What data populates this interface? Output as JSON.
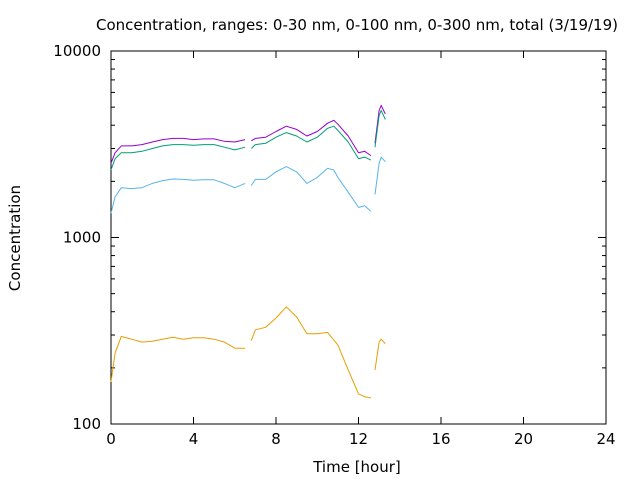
{
  "chart_data": {
    "type": "line",
    "title": "Concentration, ranges: 0-30 nm, 0-100 nm, 0-300 nm, total (3/19/19)",
    "xlabel": "Time [hour]",
    "ylabel": "Concentration",
    "xlim": [
      0,
      24
    ],
    "ylim": [
      100,
      10000
    ],
    "yscale": "log",
    "grid": false,
    "legend": "none",
    "x_ticks": [
      "0",
      "4",
      "8",
      "12",
      "16",
      "20",
      "24"
    ],
    "y_ticks": [
      "100",
      "1000",
      "10000"
    ],
    "series": [
      {
        "color": "#9400d3",
        "segments": [
          [
            [
              0.0,
              2500
            ],
            [
              0.2,
              2850
            ],
            [
              0.5,
              3100
            ],
            [
              1.0,
              3100
            ],
            [
              1.5,
              3150
            ],
            [
              2.0,
              3250
            ],
            [
              2.5,
              3350
            ],
            [
              3.0,
              3400
            ],
            [
              3.5,
              3400
            ],
            [
              4.0,
              3350
            ],
            [
              4.5,
              3380
            ],
            [
              5.0,
              3380
            ],
            [
              5.5,
              3280
            ],
            [
              6.0,
              3250
            ],
            [
              6.5,
              3350
            ]
          ],
          [
            [
              6.8,
              3300
            ],
            [
              7.0,
              3400
            ],
            [
              7.5,
              3450
            ],
            [
              8.0,
              3700
            ],
            [
              8.5,
              3950
            ],
            [
              9.0,
              3800
            ],
            [
              9.5,
              3500
            ],
            [
              10.0,
              3700
            ],
            [
              10.5,
              4100
            ],
            [
              10.8,
              4250
            ],
            [
              11.0,
              4050
            ],
            [
              11.5,
              3500
            ],
            [
              12.0,
              2850
            ],
            [
              12.3,
              2900
            ],
            [
              12.6,
              2750
            ]
          ],
          [
            [
              12.8,
              3200
            ],
            [
              13.0,
              4800
            ],
            [
              13.1,
              5100
            ],
            [
              13.3,
              4600
            ]
          ]
        ]
      },
      {
        "color": "#009e73",
        "segments": [
          [
            [
              0.0,
              2300
            ],
            [
              0.2,
              2650
            ],
            [
              0.5,
              2850
            ],
            [
              1.0,
              2850
            ],
            [
              1.5,
              2900
            ],
            [
              2.0,
              3000
            ],
            [
              2.5,
              3100
            ],
            [
              3.0,
              3150
            ],
            [
              3.5,
              3150
            ],
            [
              4.0,
              3120
            ],
            [
              4.5,
              3150
            ],
            [
              5.0,
              3150
            ],
            [
              5.5,
              3050
            ],
            [
              6.0,
              2950
            ],
            [
              6.5,
              3050
            ]
          ],
          [
            [
              6.8,
              3000
            ],
            [
              7.0,
              3150
            ],
            [
              7.5,
              3200
            ],
            [
              8.0,
              3450
            ],
            [
              8.5,
              3650
            ],
            [
              9.0,
              3500
            ],
            [
              9.5,
              3250
            ],
            [
              10.0,
              3450
            ],
            [
              10.5,
              3850
            ],
            [
              10.8,
              3950
            ],
            [
              11.0,
              3750
            ],
            [
              11.5,
              3250
            ],
            [
              12.0,
              2650
            ],
            [
              12.3,
              2700
            ],
            [
              12.6,
              2600
            ]
          ],
          [
            [
              12.8,
              3050
            ],
            [
              13.0,
              4500
            ],
            [
              13.1,
              4800
            ],
            [
              13.3,
              4300
            ]
          ]
        ]
      },
      {
        "color": "#56b4e9",
        "segments": [
          [
            [
              0.0,
              1350
            ],
            [
              0.2,
              1650
            ],
            [
              0.5,
              1850
            ],
            [
              1.0,
              1830
            ],
            [
              1.5,
              1850
            ],
            [
              2.0,
              1950
            ],
            [
              2.5,
              2020
            ],
            [
              3.0,
              2060
            ],
            [
              3.5,
              2050
            ],
            [
              4.0,
              2030
            ],
            [
              4.5,
              2040
            ],
            [
              5.0,
              2040
            ],
            [
              5.5,
              1950
            ],
            [
              6.0,
              1850
            ],
            [
              6.5,
              1950
            ]
          ],
          [
            [
              6.8,
              1900
            ],
            [
              7.0,
              2050
            ],
            [
              7.5,
              2050
            ],
            [
              8.0,
              2250
            ],
            [
              8.5,
              2400
            ],
            [
              9.0,
              2250
            ],
            [
              9.5,
              1950
            ],
            [
              10.0,
              2100
            ],
            [
              10.5,
              2350
            ],
            [
              10.8,
              2300
            ],
            [
              11.0,
              2100
            ],
            [
              11.5,
              1750
            ],
            [
              12.0,
              1450
            ],
            [
              12.3,
              1480
            ],
            [
              12.6,
              1380
            ]
          ],
          [
            [
              12.8,
              1700
            ],
            [
              13.0,
              2500
            ],
            [
              13.1,
              2700
            ],
            [
              13.3,
              2550
            ]
          ]
        ]
      },
      {
        "color": "#e69f00",
        "segments": [
          [
            [
              0.0,
              168
            ],
            [
              0.2,
              240
            ],
            [
              0.5,
              295
            ],
            [
              1.0,
              285
            ],
            [
              1.5,
              275
            ],
            [
              2.0,
              278
            ],
            [
              2.5,
              285
            ],
            [
              3.0,
              292
            ],
            [
              3.5,
              285
            ],
            [
              4.0,
              290
            ],
            [
              4.5,
              290
            ],
            [
              5.0,
              285
            ],
            [
              5.5,
              275
            ],
            [
              6.0,
              255
            ],
            [
              6.5,
              255
            ]
          ],
          [
            [
              6.8,
              280
            ],
            [
              7.0,
              320
            ],
            [
              7.5,
              330
            ],
            [
              8.0,
              370
            ],
            [
              8.5,
              425
            ],
            [
              9.0,
              375
            ],
            [
              9.5,
              305
            ],
            [
              10.0,
              305
            ],
            [
              10.5,
              310
            ],
            [
              11.0,
              265
            ],
            [
              11.5,
              195
            ],
            [
              12.0,
              145
            ],
            [
              12.3,
              140
            ],
            [
              12.6,
              138
            ]
          ],
          [
            [
              12.8,
              195
            ],
            [
              13.0,
              275
            ],
            [
              13.1,
              285
            ],
            [
              13.3,
              270
            ]
          ]
        ]
      }
    ]
  }
}
